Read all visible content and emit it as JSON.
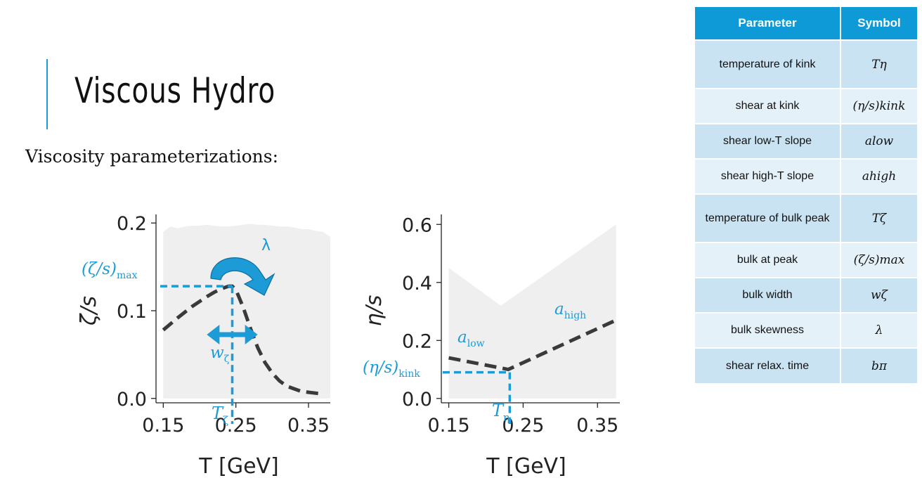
{
  "slide": {
    "title": "Viscous Hydro",
    "subtitle": "Viscosity parameterizations:"
  },
  "colors": {
    "accent": "#1c9bd7",
    "curve": "#3a3a3a",
    "band": "#efefef",
    "table_header": "#0e9ad7"
  },
  "chart_data": [
    {
      "type": "line",
      "xlabel": "T [GeV]",
      "ylabel": "ζ/s",
      "xlim": [
        0.14,
        0.38
      ],
      "ylim": [
        -0.005,
        0.205
      ],
      "xticks": [
        0.15,
        0.25,
        0.35
      ],
      "xtick_labels": [
        "0.15",
        "0.25",
        "0.35"
      ],
      "yticks": [
        0.0,
        0.1,
        0.2
      ],
      "ytick_labels": [
        "0.0",
        "0.1",
        "0.2"
      ],
      "grid": false,
      "band_upper": {
        "x": [
          0.15,
          0.16,
          0.17,
          0.18,
          0.19,
          0.2,
          0.21,
          0.22,
          0.23,
          0.24,
          0.25,
          0.26,
          0.27,
          0.28,
          0.29,
          0.3,
          0.31,
          0.32,
          0.33,
          0.34,
          0.35,
          0.36,
          0.37,
          0.38
        ],
        "y": [
          0.19,
          0.196,
          0.194,
          0.196,
          0.197,
          0.197,
          0.198,
          0.197,
          0.196,
          0.196,
          0.197,
          0.198,
          0.199,
          0.198,
          0.198,
          0.197,
          0.196,
          0.196,
          0.195,
          0.193,
          0.193,
          0.191,
          0.19,
          0.184
        ]
      },
      "series": [
        {
          "style": "dashed",
          "x": [
            0.15,
            0.17,
            0.19,
            0.21,
            0.22,
            0.23,
            0.24,
            0.245,
            0.25,
            0.26,
            0.27,
            0.28,
            0.29,
            0.3,
            0.31,
            0.32,
            0.34,
            0.37
          ],
          "y": [
            0.078,
            0.092,
            0.105,
            0.116,
            0.121,
            0.125,
            0.128,
            0.128,
            0.124,
            0.104,
            0.08,
            0.058,
            0.041,
            0.029,
            0.02,
            0.014,
            0.008,
            0.005
          ]
        }
      ],
      "annotations": {
        "peak_value_label": "(ζ/s)max",
        "peak_label_main": "(ζ/s)",
        "peak_label_sub": "max",
        "peak_point": [
          0.245,
          0.128
        ],
        "width_label": "w",
        "width_sub": "ζ",
        "width_range": [
          0.21,
          0.28
        ],
        "width_y": 0.1,
        "temp_label": "T",
        "temp_sub": "ζ",
        "skew_label": "λ"
      }
    },
    {
      "type": "line",
      "xlabel": "T [GeV]",
      "ylabel": "η/s",
      "xlim": [
        0.14,
        0.38
      ],
      "ylim": [
        -0.015,
        0.62
      ],
      "xticks": [
        0.15,
        0.25,
        0.35
      ],
      "xtick_labels": [
        "0.15",
        "0.25",
        "0.35"
      ],
      "yticks": [
        0.0,
        0.2,
        0.4,
        0.6
      ],
      "ytick_labels": [
        "0.0",
        "0.2",
        "0.4",
        "0.6"
      ],
      "grid": false,
      "band_upper": {
        "x": [
          0.15,
          0.22,
          0.375
        ],
        "y": [
          0.45,
          0.32,
          0.6
        ]
      },
      "series": [
        {
          "style": "dashed",
          "x": [
            0.15,
            0.23,
            0.375
          ],
          "y": [
            0.14,
            0.1,
            0.27
          ]
        }
      ],
      "annotations": {
        "kink_label_main": "(η/s)",
        "kink_label_sub": "kink",
        "kink_point": [
          0.232,
          0.09
        ],
        "low_label": "a",
        "low_sub": "low",
        "high_label": "a",
        "high_sub": "high",
        "temp_label": "T",
        "temp_sub": "η"
      }
    }
  ],
  "table": {
    "headers": [
      "Parameter",
      "Symbol"
    ],
    "rows": [
      {
        "param": "temperature of kink",
        "symbol": "Tη"
      },
      {
        "param": "shear at kink",
        "symbol": "(η/s)kink"
      },
      {
        "param": "shear low-T slope",
        "symbol": "alow"
      },
      {
        "param": "shear high-T slope",
        "symbol": "ahigh"
      },
      {
        "param": "temperature of bulk peak",
        "symbol": "Tζ"
      },
      {
        "param": "bulk at peak",
        "symbol": "(ζ/s)max"
      },
      {
        "param": "bulk width",
        "symbol": "wζ"
      },
      {
        "param": "bulk skewness",
        "symbol": "λ"
      },
      {
        "param": "shear relax. time",
        "symbol": "bπ"
      }
    ]
  }
}
